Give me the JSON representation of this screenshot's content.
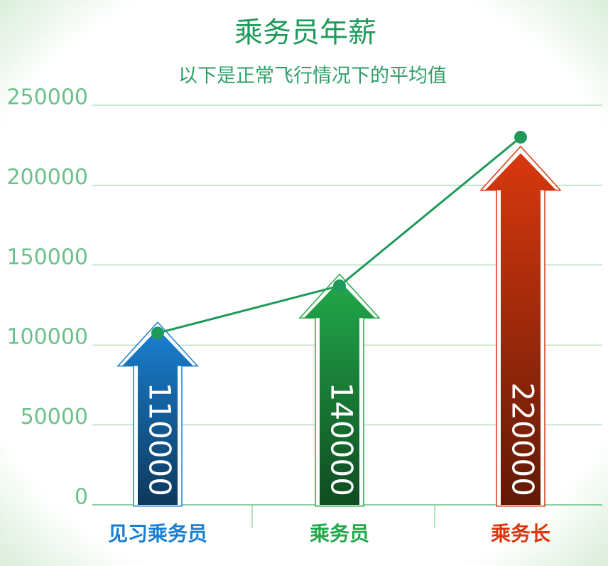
{
  "chart_data": {
    "type": "bar",
    "title": "乘务员年薪",
    "subtitle": "以下是正常飞行情况下的平均值",
    "categories": [
      "见习乘务员",
      "乘务员",
      "乘务长"
    ],
    "values": [
      110000,
      140000,
      220000
    ],
    "colors": [
      "#1a7fd0",
      "#22a84a",
      "#d8380e"
    ],
    "line_values": [
      107500,
      137000,
      230000
    ],
    "line_color": "#1f9a5a",
    "ylim": [
      0,
      250000
    ],
    "yticks": [
      0,
      50000,
      100000,
      150000,
      200000,
      250000
    ],
    "grid": true
  }
}
